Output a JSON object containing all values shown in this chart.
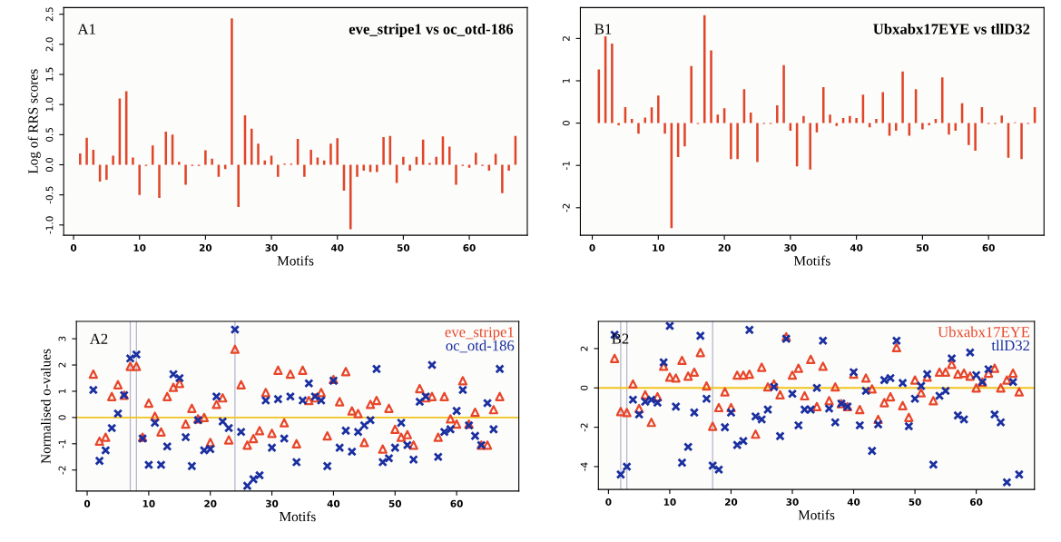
{
  "chart_data": [
    {
      "type": "bar",
      "ylabel": "Log of RRS scores",
      "xlabel": "Motifs",
      "annotations": [
        "A1",
        "eve_stripe1 vs oc_otd-186"
      ],
      "x": [
        1,
        2,
        3,
        4,
        5,
        6,
        7,
        8,
        9,
        10,
        11,
        12,
        13,
        14,
        15,
        16,
        17,
        18,
        19,
        20,
        21,
        22,
        23,
        24,
        25,
        26,
        27,
        28,
        29,
        30,
        31,
        32,
        33,
        34,
        35,
        36,
        37,
        38,
        39,
        40,
        41,
        42,
        43,
        44,
        45,
        46,
        47,
        48,
        49,
        50,
        51,
        52,
        53,
        54,
        55,
        56,
        57,
        58,
        59,
        60,
        61,
        62,
        63,
        64,
        65,
        66,
        67
      ],
      "series": [
        {
          "color": "#e0452a",
          "values": [
            0.19,
            0.45,
            0.25,
            -0.28,
            -0.25,
            0.15,
            1.1,
            1.22,
            0.12,
            -0.5,
            -0.02,
            0.32,
            -0.55,
            0.55,
            0.5,
            0.05,
            -0.33,
            -0.02,
            -0.02,
            0.24,
            0.1,
            -0.2,
            -0.07,
            2.43,
            -0.7,
            0.82,
            0.6,
            0.35,
            0.07,
            0.15,
            -0.2,
            0.02,
            0.02,
            0.43,
            -0.2,
            0.25,
            0.12,
            0.07,
            0.35,
            0.44,
            -0.43,
            -1.07,
            -0.2,
            -0.1,
            -0.12,
            -0.12,
            0.46,
            0.48,
            -0.3,
            0.13,
            -0.1,
            0.13,
            0.42,
            0.03,
            0.13,
            0.47,
            0.3,
            -0.33,
            -0.02,
            -0.05,
            0.2,
            -0.02,
            -0.1,
            0.18,
            -0.47,
            -0.1,
            0.48
          ]
        }
      ],
      "xlim": [
        -1.5,
        68.8
      ],
      "xticks": [
        0,
        10,
        20,
        30,
        40,
        50,
        60
      ],
      "ylim": [
        -1.17,
        2.61
      ],
      "yticks": [
        {
          "value": -1.0,
          "label": "-1.0"
        },
        {
          "value": -0.5,
          "label": "-0.5"
        },
        {
          "value": 0.0,
          "label": "0.0"
        },
        {
          "value": 0.5,
          "label": "0.5"
        },
        {
          "value": 1.0,
          "label": "1.0"
        },
        {
          "value": 1.5,
          "label": "1.5"
        },
        {
          "value": 2.0,
          "label": "2.0"
        },
        {
          "value": 2.5,
          "label": "2.5"
        }
      ]
    },
    {
      "type": "bar",
      "xlabel": "Motifs",
      "annotations": [
        "B1",
        "Ubxabx17EYE vs tllD32"
      ],
      "x": [
        1,
        2,
        3,
        4,
        5,
        6,
        7,
        8,
        9,
        10,
        11,
        12,
        13,
        14,
        15,
        16,
        17,
        18,
        19,
        20,
        21,
        22,
        23,
        24,
        25,
        26,
        27,
        28,
        29,
        30,
        31,
        32,
        33,
        34,
        35,
        36,
        37,
        38,
        39,
        40,
        41,
        42,
        43,
        44,
        45,
        46,
        47,
        48,
        49,
        50,
        51,
        52,
        53,
        54,
        55,
        56,
        57,
        58,
        59,
        60,
        61,
        62,
        63,
        64,
        65,
        66,
        67
      ],
      "series": [
        {
          "color": "#e0452a",
          "values": [
            1.27,
            2.05,
            1.88,
            -0.05,
            0.38,
            0.1,
            -0.25,
            0.13,
            0.37,
            0.65,
            -0.25,
            -2.48,
            -0.8,
            -0.55,
            1.35,
            -0.02,
            2.55,
            1.72,
            0.2,
            0.35,
            -0.85,
            -0.85,
            0.8,
            0.25,
            -0.92,
            -0.02,
            -0.02,
            0.42,
            1.37,
            -0.18,
            -1.02,
            0.17,
            -1.1,
            -0.22,
            0.85,
            0.2,
            -0.07,
            0.12,
            0.17,
            0.12,
            0.67,
            -0.1,
            0.1,
            0.73,
            -0.3,
            -0.18,
            1.22,
            -0.3,
            0.8,
            -0.15,
            -0.05,
            0.1,
            1.08,
            -0.27,
            -0.18,
            0.47,
            -0.52,
            -0.65,
            0.38,
            -0.02,
            -0.02,
            0.18,
            -0.82,
            0.02,
            -0.85,
            -0.02,
            0.38
          ]
        }
      ],
      "xlim": [
        -1.8,
        68.4
      ],
      "xticks": [
        0,
        10,
        20,
        30,
        40,
        50,
        60
      ],
      "ylim": [
        -2.65,
        2.73
      ],
      "yticks": [
        {
          "value": -2,
          "label": "-2"
        },
        {
          "value": -1,
          "label": "-1"
        },
        0,
        1,
        2
      ]
    },
    {
      "type": "scatter",
      "ylabel": "Normalised o-values",
      "xlabel": "Motifs",
      "annotations": [
        "A2"
      ],
      "legend": "top right",
      "x": [
        1,
        2,
        3,
        4,
        5,
        6,
        7,
        8,
        9,
        10,
        11,
        12,
        13,
        14,
        15,
        16,
        17,
        18,
        19,
        20,
        21,
        22,
        23,
        24,
        25,
        26,
        27,
        28,
        29,
        30,
        31,
        32,
        33,
        34,
        35,
        36,
        37,
        38,
        39,
        40,
        41,
        42,
        43,
        44,
        45,
        46,
        47,
        48,
        49,
        50,
        51,
        52,
        53,
        54,
        55,
        56,
        57,
        58,
        59,
        60,
        61,
        62,
        63,
        64,
        65,
        66,
        67
      ],
      "series": [
        {
          "name": "eve_stripe1",
          "color": "#e8462a",
          "marker": "triangle",
          "values": [
            1.65,
            -0.9,
            -0.75,
            0.8,
            1.25,
            0.85,
            1.95,
            1.95,
            -0.75,
            0.55,
            0.05,
            -0.55,
            0.8,
            1.15,
            1.3,
            -0.25,
            0.35,
            -0.05,
            0.0,
            -0.95,
            0.5,
            0.75,
            -0.85,
            2.6,
            1.25,
            -1.05,
            -0.8,
            -0.5,
            0.95,
            -0.6,
            1.8,
            -0.2,
            1.65,
            -1.0,
            1.8,
            0.65,
            0.75,
            0.95,
            -0.7,
            1.45,
            0.6,
            1.75,
            0.25,
            0.15,
            -0.95,
            0.5,
            0.65,
            -1.2,
            0.35,
            -0.45,
            -0.75,
            -0.65,
            -1.05,
            1.1,
            0.75,
            0.8,
            -0.75,
            0.8,
            -0.05,
            -0.25,
            1.4,
            -0.25,
            0.2,
            -1.05,
            -1.05,
            0.3,
            0.8
          ]
        },
        {
          "name": "oc_otd-186",
          "color": "#1a2fa0",
          "marker": "cross",
          "values": [
            1.05,
            -1.65,
            -1.25,
            -0.4,
            0.15,
            0.85,
            2.25,
            2.4,
            -0.8,
            -1.8,
            -0.2,
            -1.8,
            -1.1,
            1.65,
            1.5,
            -0.75,
            -1.85,
            -0.1,
            -1.25,
            -1.2,
            0.8,
            -0.15,
            -0.4,
            3.35,
            -0.55,
            -2.6,
            -2.35,
            -2.2,
            0.65,
            -1.15,
            0.7,
            -0.8,
            0.8,
            -1.7,
            0.65,
            1.3,
            0.8,
            0.65,
            -1.85,
            1.4,
            -1.15,
            -0.5,
            -1.3,
            -0.55,
            -0.3,
            -0.1,
            1.85,
            -1.7,
            -1.55,
            -1.15,
            -0.2,
            -1.05,
            -1.6,
            0.6,
            0.8,
            2.0,
            -1.5,
            -0.55,
            -0.45,
            0.25,
            1.05,
            -0.3,
            -0.7,
            -1.05,
            0.55,
            -0.45,
            1.85
          ]
        }
      ],
      "ref_lines": [
        {
          "axis": "y",
          "value": 0,
          "color": "#f2c31e"
        },
        {
          "axis": "x",
          "value": 7,
          "color": "#b4b4cc"
        },
        {
          "axis": "x",
          "value": 8,
          "color": "#b4b4cc"
        },
        {
          "axis": "x",
          "value": 24,
          "color": "#b4b4cc"
        }
      ],
      "xlim": [
        -1.75,
        70.1
      ],
      "xticks": [
        0,
        10,
        20,
        30,
        40,
        50,
        60
      ],
      "ylim": [
        -2.8,
        3.66
      ],
      "yticks": [
        {
          "value": -2,
          "label": "-2"
        },
        {
          "value": -1,
          "label": "-1"
        },
        0,
        1,
        2,
        3
      ]
    },
    {
      "type": "scatter",
      "xlabel": "Motifs",
      "annotations": [
        "B2"
      ],
      "legend": "top right",
      "x": [
        1,
        2,
        3,
        4,
        5,
        6,
        7,
        8,
        9,
        10,
        11,
        12,
        13,
        14,
        15,
        16,
        17,
        18,
        19,
        20,
        21,
        22,
        23,
        24,
        25,
        26,
        27,
        28,
        29,
        30,
        31,
        32,
        33,
        34,
        35,
        36,
        37,
        38,
        39,
        40,
        41,
        42,
        43,
        44,
        45,
        46,
        47,
        48,
        49,
        50,
        51,
        52,
        53,
        54,
        55,
        56,
        57,
        58,
        59,
        60,
        61,
        62,
        63,
        64,
        65,
        66,
        67
      ],
      "series": [
        {
          "name": "Ubxabx17EYE",
          "color": "#e8462a",
          "marker": "triangle",
          "values": [
            1.5,
            -1.2,
            -1.25,
            0.2,
            -1.05,
            -0.35,
            -1.75,
            -0.45,
            1.1,
            0.55,
            0.5,
            1.4,
            0.6,
            0.8,
            1.8,
            0.1,
            -1.95,
            -1.0,
            -0.2,
            -1.0,
            0.65,
            0.65,
            0.7,
            -2.35,
            1.05,
            0.05,
            0.2,
            -0.35,
            2.6,
            0.65,
            1.0,
            -0.4,
            1.45,
            -0.95,
            1.1,
            -0.65,
            0.05,
            -0.8,
            -0.95,
            0.7,
            -1.1,
            0.5,
            -0.05,
            -1.6,
            -0.75,
            -0.45,
            2.05,
            -0.9,
            -1.5,
            0.4,
            -0.25,
            0.55,
            -0.65,
            0.8,
            0.8,
            1.2,
            0.7,
            0.75,
            0.6,
            0.0,
            0.3,
            0.75,
            1.0,
            0.0,
            0.4,
            0.75,
            -0.2
          ]
        },
        {
          "name": "tllD32",
          "color": "#1a2fa0",
          "marker": "cross",
          "values": [
            2.7,
            -4.4,
            -4.0,
            -0.6,
            -1.35,
            -0.7,
            -0.6,
            -0.75,
            1.3,
            3.15,
            -0.95,
            -3.8,
            -3.0,
            -1.25,
            2.65,
            -0.55,
            -3.95,
            -4.15,
            -2.0,
            -1.25,
            -2.9,
            -2.7,
            2.95,
            -1.45,
            -1.6,
            -1.1,
            0.05,
            -2.45,
            2.5,
            -0.3,
            -1.9,
            -1.1,
            -1.1,
            0.0,
            2.4,
            -1.05,
            -1.75,
            -0.8,
            -0.95,
            0.8,
            -1.9,
            -0.15,
            -3.2,
            -1.85,
            0.4,
            0.5,
            2.4,
            0.25,
            -1.95,
            -0.55,
            0.1,
            0.7,
            -3.9,
            -0.4,
            -0.15,
            1.5,
            -1.4,
            -1.6,
            1.8,
            0.65,
            0.3,
            0.95,
            -1.35,
            -1.75,
            -4.8,
            0.3,
            -4.4
          ]
        }
      ],
      "ref_lines": [
        {
          "axis": "y",
          "value": 0,
          "color": "#f2c31e"
        },
        {
          "axis": "x",
          "value": 2,
          "color": "#b4b4cc"
        },
        {
          "axis": "x",
          "value": 3,
          "color": "#b4b4cc"
        },
        {
          "axis": "x",
          "value": 17,
          "color": "#b4b4cc"
        }
      ],
      "xlim": [
        -1.64,
        69.5
      ],
      "xticks": [
        0,
        10,
        20,
        30,
        40,
        50,
        60
      ],
      "ylim": [
        -5.16,
        3.38
      ],
      "yticks": [
        {
          "value": -4,
          "label": "-4"
        },
        {
          "value": -2,
          "label": "-2"
        },
        0,
        2
      ]
    }
  ]
}
